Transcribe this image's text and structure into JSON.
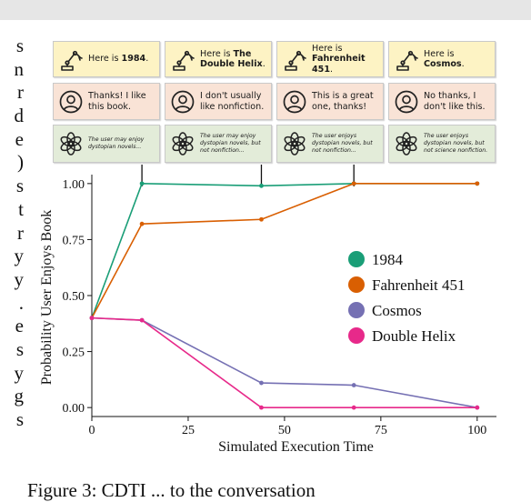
{
  "left_text": [
    "s",
    "n",
    "r",
    "d",
    "e",
    ")",
    "s",
    "t",
    "r",
    "y",
    "y",
    ".",
    "e",
    "s",
    "y",
    "g",
    "s"
  ],
  "caption": "Figure 3: CDTI ... to the conversation",
  "cards": {
    "robot": [
      {
        "prefix": "Here is ",
        "title": "1984",
        "suffix": "."
      },
      {
        "prefix": "Here is ",
        "title": "The Double Helix",
        "suffix": "."
      },
      {
        "prefix": "Here is ",
        "title": "Fahrenheit 451",
        "suffix": "."
      },
      {
        "prefix": "Here is ",
        "title": "Cosmos",
        "suffix": "."
      }
    ],
    "user": [
      "Thanks! I like this book.",
      "I don't usually like nonfiction.",
      "This is a great one, thanks!",
      "No thanks, I don't like this."
    ],
    "model": [
      "The user may enjoy dystopian novels...",
      "The user may enjoy dystopian novels, but not nonfiction...",
      "The user enjoys dystopian novels, but not nonfiction...",
      "The user enjoys dystopian novels, but not science nonfiction."
    ]
  },
  "icons": {
    "robot": "robot-arm-icon",
    "user": "user-avatar-icon",
    "model": "openai-logo-icon"
  },
  "chart_data": {
    "type": "line",
    "xlabel": "Simulated Execution Time",
    "ylabel": "Probability User Enjoys Book",
    "xlim": [
      0,
      105
    ],
    "ylim": [
      -0.04,
      1.04
    ],
    "xticks": [
      0,
      25,
      50,
      75,
      100
    ],
    "yticks": [
      0.0,
      0.25,
      0.5,
      0.75,
      1.0
    ],
    "xtick_labels": [
      "0",
      "25",
      "50",
      "75",
      "100"
    ],
    "ytick_labels": [
      "0.00",
      "0.25",
      "0.50",
      "0.75",
      "1.00"
    ],
    "legend_position": "center-right",
    "grid": false,
    "event_markers_x": [
      13,
      44,
      68
    ],
    "series": [
      {
        "name": "1984",
        "color": "#1a9e77",
        "x": [
          0,
          13,
          44,
          68,
          100
        ],
        "y": [
          0.4,
          1.0,
          0.99,
          1.0,
          1.0
        ]
      },
      {
        "name": "Fahrenheit 451",
        "color": "#d95f02",
        "x": [
          0,
          13,
          44,
          68,
          100
        ],
        "y": [
          0.4,
          0.82,
          0.84,
          1.0,
          1.0
        ]
      },
      {
        "name": "Cosmos",
        "color": "#7570b3",
        "x": [
          0,
          13,
          44,
          68,
          100
        ],
        "y": [
          0.4,
          0.39,
          0.11,
          0.1,
          0.0
        ]
      },
      {
        "name": "Double Helix",
        "color": "#e7298a",
        "x": [
          0,
          13,
          44,
          68,
          100
        ],
        "y": [
          0.4,
          0.39,
          0.0,
          0.0,
          0.0
        ]
      }
    ]
  }
}
